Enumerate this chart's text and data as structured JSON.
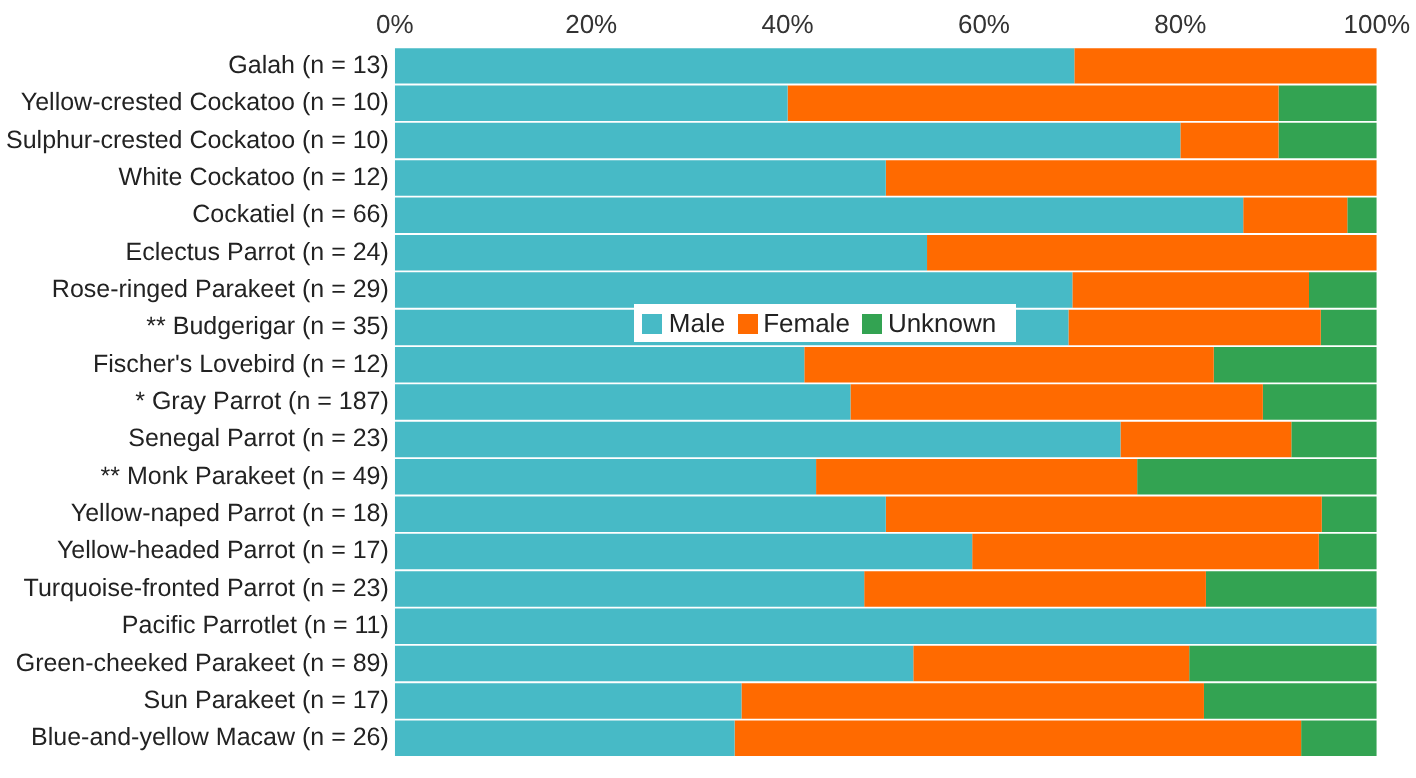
{
  "chart_data": {
    "type": "bar",
    "orientation": "horizontal",
    "stacked": true,
    "grid": false,
    "legend": "center",
    "categories": [
      "Galah (n = 13)",
      "Yellow-crested Cockatoo (n = 10)",
      "Sulphur-crested Cockatoo (n = 10)",
      "White Cockatoo (n = 12)",
      "Cockatiel (n = 66)",
      "Eclectus Parrot (n = 24)",
      "Rose-ringed Parakeet (n = 29)",
      "** Budgerigar (n = 35)",
      "Fischer's Lovebird (n = 12)",
      "* Gray Parrot (n = 187)",
      "Senegal Parrot (n = 23)",
      "** Monk Parakeet (n = 49)",
      "Yellow-naped Parrot (n = 18)",
      "Yellow-headed Parrot (n = 17)",
      "Turquoise-fronted Parrot (n = 23)",
      "Pacific Parrotlet (n = 11)",
      "Green-cheeked Parakeet (n = 89)",
      "Sun Parakeet (n = 17)",
      "Blue-and-yellow Macaw (n = 26)"
    ],
    "xlim": [
      0,
      100
    ],
    "xticks": [
      {
        "value": 0,
        "label": "0%"
      },
      {
        "value": 20,
        "label": "20%"
      },
      {
        "value": 40,
        "label": "40%"
      },
      {
        "value": 60,
        "label": "60%"
      },
      {
        "value": 80,
        "label": "80%"
      },
      {
        "value": 100,
        "label": "100%"
      }
    ],
    "series": [
      {
        "name": "Male",
        "color": "#47bac6",
        "values": [
          69.2,
          40,
          80,
          50,
          86.4,
          54.2,
          69.0,
          68.6,
          41.7,
          46.4,
          73.9,
          42.9,
          50,
          58.8,
          47.8,
          100,
          52.8,
          35.3,
          34.6
        ]
      },
      {
        "name": "Female",
        "color": "#ff6a00",
        "values": [
          30.8,
          50,
          10,
          50,
          10.6,
          45.8,
          24.1,
          25.7,
          41.7,
          42.0,
          17.4,
          32.7,
          44.4,
          35.3,
          34.8,
          0,
          28.1,
          47.1,
          57.7
        ]
      },
      {
        "name": "Unknown",
        "color": "#33a352",
        "values": [
          0,
          10,
          10,
          0,
          3.0,
          0,
          6.9,
          5.7,
          16.6,
          11.6,
          8.7,
          24.4,
          5.6,
          5.9,
          17.4,
          0,
          19.1,
          17.6,
          7.7
        ]
      }
    ]
  }
}
